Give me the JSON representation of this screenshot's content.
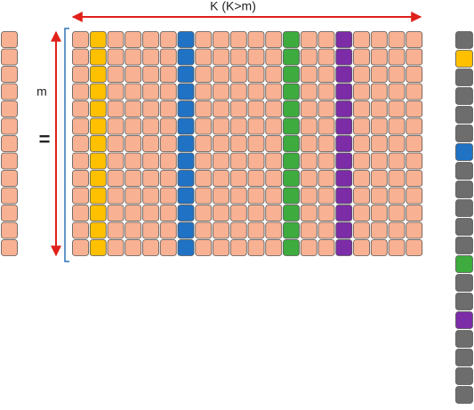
{
  "labels": {
    "k": "K (K>m)",
    "m": "m",
    "equals": "="
  }
}
